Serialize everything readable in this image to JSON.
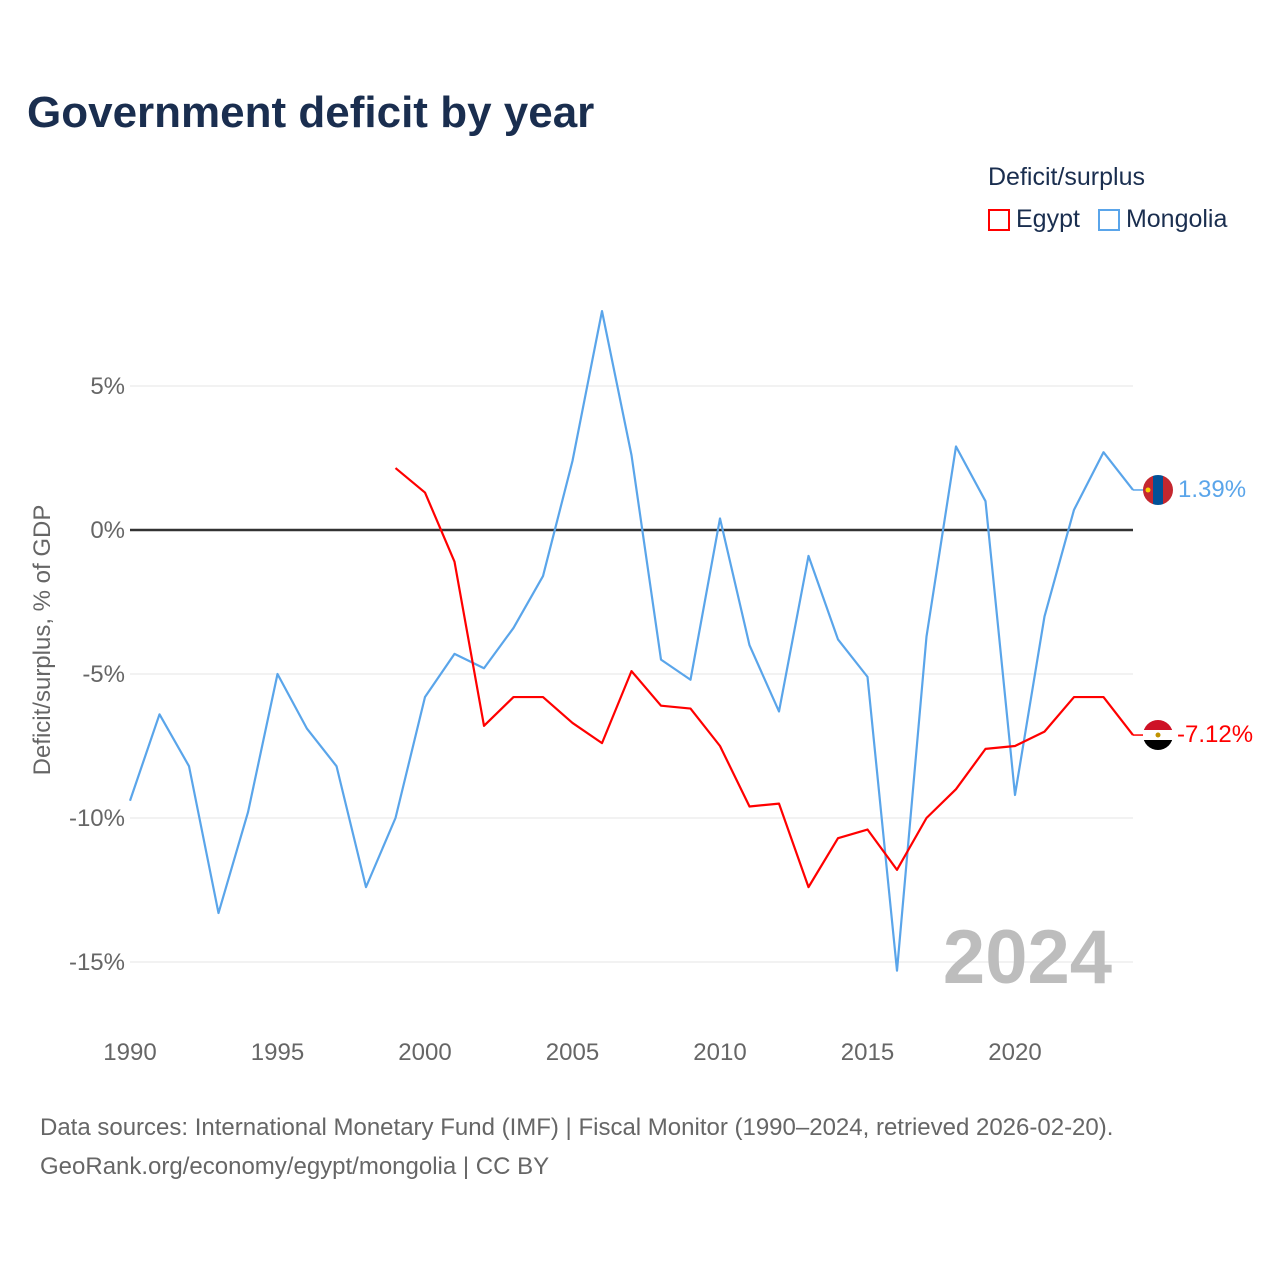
{
  "title": "Government deficit by year",
  "legend": {
    "title": "Deficit/surplus",
    "items": [
      {
        "name": "Egypt",
        "color": "#ff0000"
      },
      {
        "name": "Mongolia",
        "color": "#5aa5ea"
      }
    ]
  },
  "footer": {
    "sources": "Data sources: International Monetary Fund (IMF) | Fiscal Monitor (1990–2024, retrieved 2026-02-20).",
    "link": "GeoRank.org/economy/egypt/mongolia | CC BY"
  },
  "chart_data": {
    "type": "line",
    "title": "Government deficit by year",
    "xlabel": "",
    "ylabel": "Deficit/surplus, % of GDP",
    "xlim": [
      1990,
      2024
    ],
    "ylim": [
      -17,
      8
    ],
    "x_ticks": [
      {
        "value": 1990,
        "label": "1990"
      },
      {
        "value": 1995,
        "label": "1995"
      },
      {
        "value": 2000,
        "label": "2000"
      },
      {
        "value": 2005,
        "label": "2005"
      },
      {
        "value": 2010,
        "label": "2010"
      },
      {
        "value": 2015,
        "label": "2015"
      },
      {
        "value": 2020,
        "label": "2020"
      }
    ],
    "y_ticks": [
      {
        "value": 5,
        "label": "5%"
      },
      {
        "value": 0,
        "label": "0%"
      },
      {
        "value": -5,
        "label": "-5%"
      },
      {
        "value": -10,
        "label": "-10%"
      },
      {
        "value": -15,
        "label": "-15%"
      }
    ],
    "year_annotation": "2024",
    "series": [
      {
        "name": "Egypt",
        "color": "#ff0000",
        "end_label": "-7.12%",
        "x": [
          1999,
          2000,
          2001,
          2002,
          2003,
          2004,
          2005,
          2006,
          2007,
          2008,
          2009,
          2010,
          2011,
          2012,
          2013,
          2014,
          2015,
          2016,
          2017,
          2018,
          2019,
          2020,
          2021,
          2022,
          2023,
          2024
        ],
        "values": [
          2.15,
          1.3,
          -1.1,
          -6.8,
          -5.8,
          -5.8,
          -6.7,
          -7.4,
          -4.9,
          -6.1,
          -6.2,
          -7.5,
          -9.6,
          -9.5,
          -12.4,
          -10.7,
          -10.4,
          -11.8,
          -10.0,
          -9.0,
          -7.6,
          -7.5,
          -7.0,
          -5.8,
          -5.8,
          -7.12
        ]
      },
      {
        "name": "Mongolia",
        "color": "#5aa5ea",
        "end_label": "1.39%",
        "x": [
          1990,
          1991,
          1992,
          1993,
          1994,
          1995,
          1996,
          1997,
          1998,
          1999,
          2000,
          2001,
          2002,
          2003,
          2004,
          2005,
          2006,
          2007,
          2008,
          2009,
          2010,
          2011,
          2012,
          2013,
          2014,
          2015,
          2016,
          2017,
          2018,
          2019,
          2020,
          2021,
          2022,
          2023,
          2024
        ],
        "values": [
          -9.4,
          -6.4,
          -8.2,
          -13.3,
          -9.8,
          -5.0,
          -6.9,
          -8.2,
          -12.4,
          -10.0,
          -5.8,
          -4.3,
          -4.8,
          -3.4,
          -1.6,
          2.4,
          7.6,
          2.6,
          -4.5,
          -5.2,
          0.4,
          -4.0,
          -6.3,
          -0.9,
          -3.8,
          -5.1,
          -15.3,
          -3.7,
          2.9,
          1.0,
          -9.2,
          -3.0,
          0.7,
          2.7,
          1.39
        ]
      }
    ]
  }
}
